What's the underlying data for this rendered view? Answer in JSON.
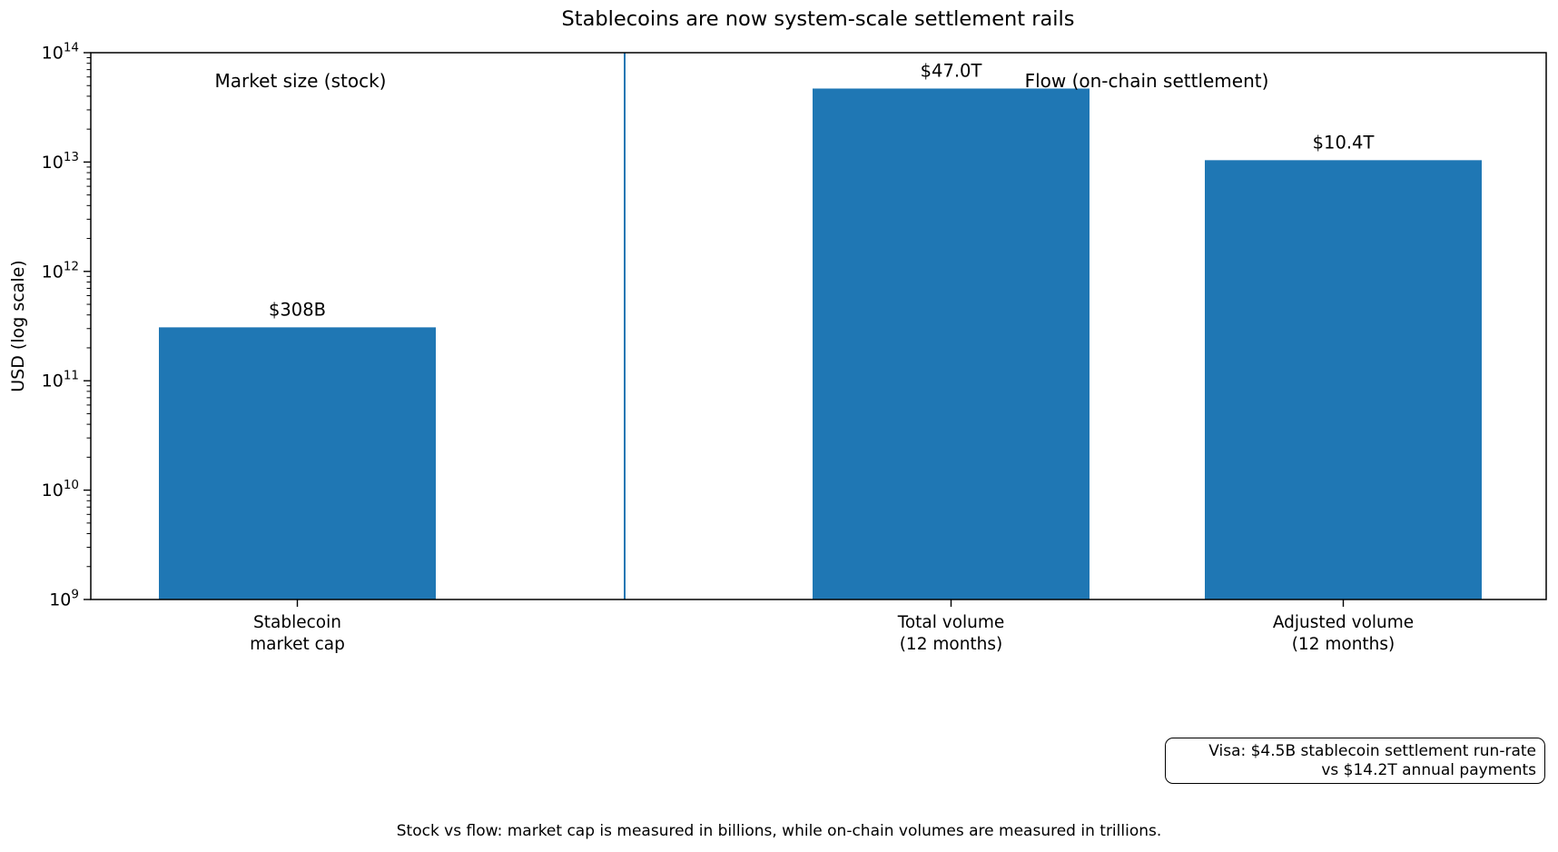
{
  "chart_data": {
    "type": "bar",
    "title": "Stablecoins are now system-scale settlement rails",
    "ylabel": "USD (log scale)",
    "xlabel": "",
    "yscale": "log",
    "ylim": [
      1000000000,
      100000000000000
    ],
    "y_tick_exponents": [
      9,
      10,
      11,
      12,
      13,
      14
    ],
    "y_tick_labels": [
      "10^9",
      "10^10",
      "10^11",
      "10^12",
      "10^13",
      "10^14"
    ],
    "grid": false,
    "legend": null,
    "categories": [
      [
        "Stablecoin",
        "market cap"
      ],
      [
        "Total volume",
        "(12 months)"
      ],
      [
        "Adjusted volume",
        "(12 months)"
      ]
    ],
    "values": [
      308000000000,
      47000000000000,
      10400000000000
    ],
    "bar_value_labels": [
      "$308B",
      "$47.0T",
      "$10.4T"
    ],
    "bar_color": "#1f77b4",
    "axis_color": "#000000",
    "section_labels": [
      "Market size (stock)",
      "Flow (on-chain settlement)"
    ],
    "divider_color": "#1f77b4",
    "annotation_box": {
      "line1": "Visa: $4.5B stablecoin settlement run-rate",
      "line2": "vs $14.2T annual payments"
    },
    "caption": "Stock vs flow: market cap is measured in billions, while on-chain volumes are measured in trillions."
  }
}
